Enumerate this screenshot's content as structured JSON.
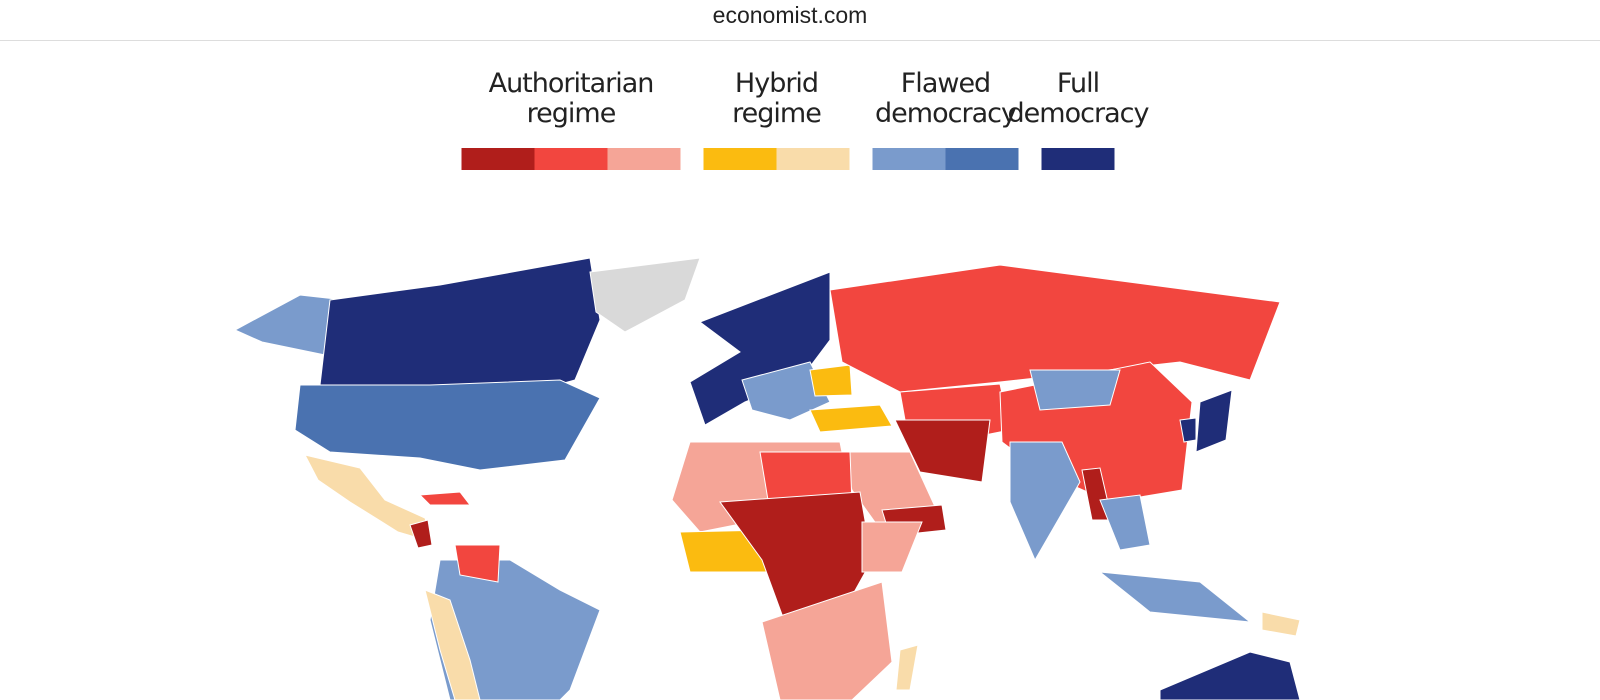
{
  "header": {
    "url": "economist.com"
  },
  "legend": [
    {
      "lines": [
        "Authoritarian",
        "regime"
      ],
      "colors": [
        "#b01e1b",
        "#f2463f",
        "#f5a597"
      ]
    },
    {
      "lines": [
        "Hybrid",
        "regime"
      ],
      "colors": [
        "#fbbb10",
        "#f9dcaa"
      ]
    },
    {
      "lines": [
        "Flawed",
        "democracy"
      ],
      "colors": [
        "#7a9bcc",
        "#4a72b0"
      ]
    },
    {
      "lines": [
        "Full",
        "democracy"
      ],
      "colors": [
        "#1f2d78"
      ]
    }
  ]
}
